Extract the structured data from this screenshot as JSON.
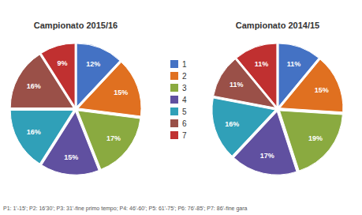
{
  "chart_data": [
    {
      "type": "pie",
      "title": "Campionato 2015/16",
      "categories": [
        "1",
        "2",
        "3",
        "4",
        "5",
        "6",
        "7"
      ],
      "values": [
        12,
        15,
        17,
        15,
        16,
        16,
        9
      ],
      "value_labels": [
        "12%",
        "15%",
        "17%",
        "15%",
        "16%",
        "16%",
        "9%"
      ],
      "colors": [
        "#4472c4",
        "#e07020",
        "#8aaa40",
        "#6050a0",
        "#30a0b8",
        "#9a5048",
        "#c03030"
      ],
      "data_labels": true,
      "legend": "center",
      "annotations": [
        "P1: 1'-15'; P2: 16'30'; P3: 31'-fine primo tempo; P4: 46'-60'; P5: 61'-75'; P6: 76'-85'; P7: 86'-fine gara"
      ]
    },
    {
      "type": "pie",
      "title": "Campionato 2014/15",
      "categories": [
        "1",
        "2",
        "3",
        "4",
        "5",
        "6",
        "7"
      ],
      "values": [
        11,
        15,
        19,
        17,
        16,
        11,
        11
      ],
      "value_labels": [
        "11%",
        "15%",
        "19%",
        "17%",
        "16%",
        "11%",
        "11%"
      ],
      "colors": [
        "#4472c4",
        "#e07020",
        "#8aaa40",
        "#6050a0",
        "#30a0b8",
        "#9a5048",
        "#c03030"
      ],
      "data_labels": true
    }
  ]
}
